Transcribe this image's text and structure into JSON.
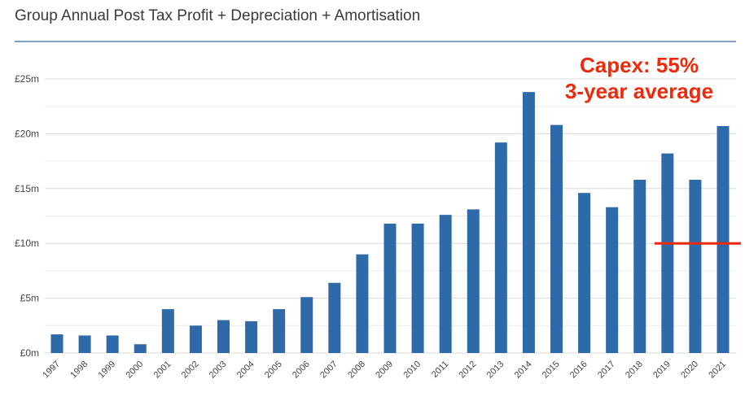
{
  "chart_data": {
    "type": "bar",
    "title": "Group Annual Post Tax Profit + Depreciation + Amortisation",
    "categories": [
      "1997",
      "1998",
      "1999",
      "2000",
      "2001",
      "2002",
      "2003",
      "2004",
      "2005",
      "2006",
      "2007",
      "2008",
      "2009",
      "2010",
      "2011",
      "2012",
      "2013",
      "2014",
      "2015",
      "2016",
      "2017",
      "2018",
      "2019",
      "2020",
      "2021"
    ],
    "values": [
      1.7,
      1.6,
      1.6,
      0.8,
      4.0,
      2.5,
      3.0,
      2.9,
      4.0,
      5.1,
      6.4,
      9.0,
      11.8,
      11.8,
      12.6,
      13.1,
      19.2,
      23.8,
      20.8,
      14.6,
      13.3,
      15.8,
      18.2,
      15.8,
      20.7
    ],
    "yticks": [
      "£0m",
      "£5m",
      "£10m",
      "£15m",
      "£20m",
      "£25m"
    ],
    "ylim": [
      0,
      25
    ],
    "grid": true,
    "bar_color": "#2e6aa8",
    "annotation": {
      "lines": [
        "Capex: 55%",
        "3-year average"
      ],
      "color": "#ee2a0c",
      "reference_value": 10.0,
      "reference_from": "2019"
    }
  }
}
